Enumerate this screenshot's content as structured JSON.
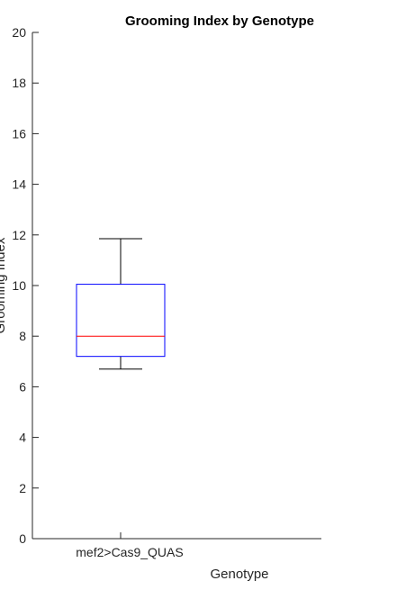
{
  "chart_data": {
    "type": "box",
    "title": "Grooming Index by Genotype",
    "xlabel": "Genotype",
    "ylabel": "Grooming Index",
    "ylim": [
      0,
      20
    ],
    "yticks": [
      "0",
      "2",
      "4",
      "6",
      "8",
      "10",
      "12",
      "14",
      "16",
      "18",
      "20"
    ],
    "categories": [
      "mef2>Cas9_QUAS"
    ],
    "boxes": [
      {
        "category": "mef2>Cas9_QUAS",
        "whisker_low": 6.7,
        "q1": 7.2,
        "median": 8.0,
        "q3": 10.05,
        "whisker_high": 11.85
      }
    ],
    "grid": false,
    "colors": {
      "box": "#0000ff",
      "median": "#ff0000",
      "whisker": "#000000",
      "axis": "#262626"
    }
  }
}
